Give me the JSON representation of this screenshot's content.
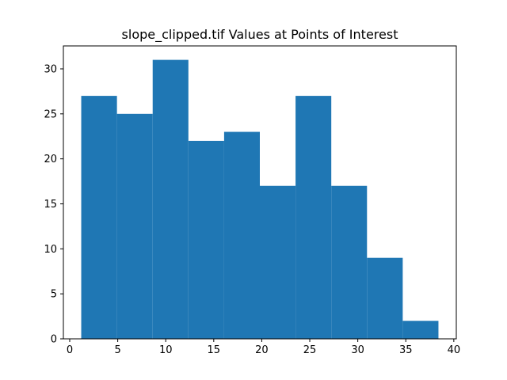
{
  "chart_data": {
    "type": "bar",
    "title": "slope_clipped.tif Values at Points of Interest",
    "xlabel": "",
    "ylabel": "",
    "bin_edges": [
      1.2,
      4.92,
      8.64,
      12.36,
      16.08,
      19.8,
      23.52,
      27.24,
      30.96,
      34.68,
      38.4
    ],
    "counts": [
      27,
      25,
      31,
      22,
      23,
      17,
      27,
      17,
      9,
      2
    ],
    "xlim": [
      -0.66,
      40.26
    ],
    "ylim": [
      0,
      32.55
    ],
    "x_ticks": [
      0,
      5,
      10,
      15,
      20,
      25,
      30,
      35,
      40
    ],
    "y_ticks": [
      0,
      5,
      10,
      15,
      20,
      25,
      30
    ],
    "grid": false,
    "legend": "none",
    "bar_color": "#1f77b4"
  }
}
